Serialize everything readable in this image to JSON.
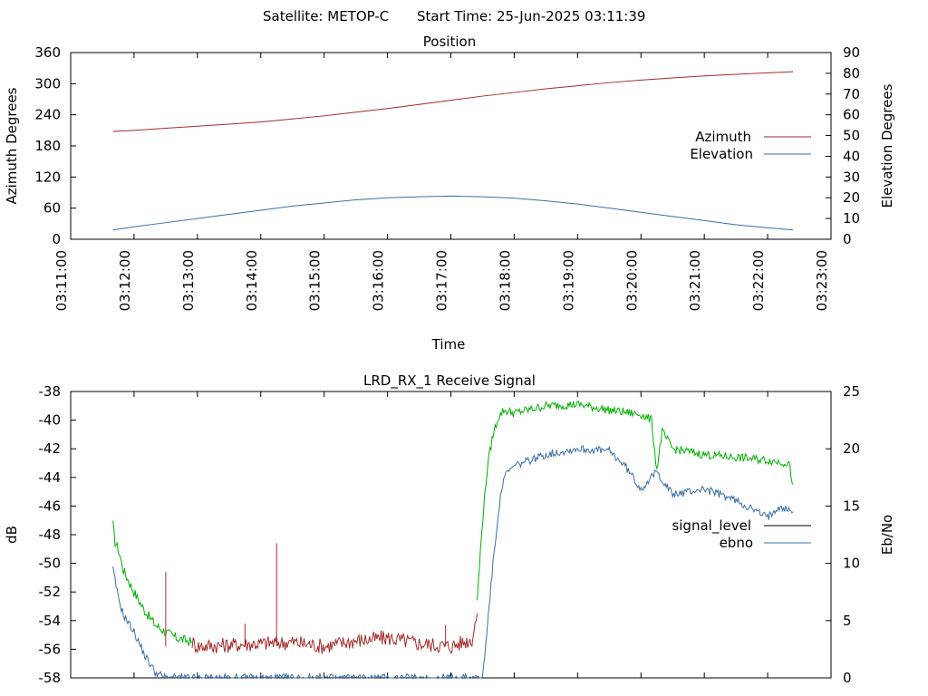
{
  "header": {
    "satellite": "Satellite: METOP-C",
    "start_time": "Start Time: 25-Jun-2025 03:11:39"
  },
  "colors": {
    "azimuth": "#a52a2a",
    "elevation": "#3a6ea5",
    "signal_green": "#00b000",
    "signal_red": "#a52a2a",
    "signal_black": "#000000",
    "ebno": "#3a6ea5"
  },
  "chart_data": [
    {
      "type": "line",
      "title": "Position",
      "xlabel": "Time",
      "ylabel": "Azimuth Degrees",
      "y2label": "Elevation Degrees",
      "xlim": [
        "03:11:00",
        "03:23:00"
      ],
      "ylim": [
        0,
        360
      ],
      "y2lim": [
        0,
        90
      ],
      "xticks": [
        "03:11:00",
        "03:12:00",
        "03:13:00",
        "03:14:00",
        "03:15:00",
        "03:16:00",
        "03:17:00",
        "03:18:00",
        "03:19:00",
        "03:20:00",
        "03:21:00",
        "03:22:00",
        "03:23:00"
      ],
      "yticks": [
        "0",
        "60",
        "120",
        "180",
        "240",
        "300",
        "360"
      ],
      "y2ticks": [
        "0",
        "10",
        "20",
        "30",
        "40",
        "50",
        "60",
        "70",
        "80",
        "90"
      ],
      "legend": "right",
      "grid": false,
      "series": [
        {
          "name": "Azimuth",
          "axis": "y",
          "x": [
            "03:11:40",
            "03:12:00",
            "03:12:30",
            "03:13:00",
            "03:13:30",
            "03:14:00",
            "03:14:30",
            "03:15:00",
            "03:15:30",
            "03:16:00",
            "03:16:30",
            "03:17:00",
            "03:17:30",
            "03:18:00",
            "03:18:30",
            "03:19:00",
            "03:19:30",
            "03:20:00",
            "03:20:30",
            "03:21:00",
            "03:21:30",
            "03:22:00",
            "03:22:24"
          ],
          "values": [
            208,
            210,
            214,
            218,
            222,
            226,
            232,
            238,
            245,
            252,
            260,
            268,
            276,
            283,
            290,
            296,
            302,
            307,
            311,
            315,
            318,
            321,
            323
          ]
        },
        {
          "name": "Elevation",
          "axis": "y2",
          "x": [
            "03:11:40",
            "03:12:00",
            "03:12:30",
            "03:13:00",
            "03:13:30",
            "03:14:00",
            "03:14:30",
            "03:15:00",
            "03:15:30",
            "03:16:00",
            "03:16:30",
            "03:17:00",
            "03:17:30",
            "03:18:00",
            "03:18:30",
            "03:19:00",
            "03:19:30",
            "03:20:00",
            "03:20:30",
            "03:21:00",
            "03:21:30",
            "03:22:00",
            "03:22:24"
          ],
          "values": [
            4.5,
            6,
            8,
            10,
            12,
            14,
            16,
            17.5,
            19,
            20,
            20.5,
            20.8,
            20.5,
            19.8,
            18.5,
            17,
            15,
            13,
            11,
            9,
            7,
            5.5,
            4.5
          ]
        }
      ]
    },
    {
      "type": "line",
      "title": "LRD_RX_1 Receive Signal",
      "ylabel": "dB",
      "y2label": "Eb/No",
      "xlim": [
        "03:11:00",
        "03:23:00"
      ],
      "ylim": [
        -58,
        -38
      ],
      "y2lim": [
        0,
        25
      ],
      "yticks": [
        "-58",
        "-56",
        "-54",
        "-52",
        "-50",
        "-48",
        "-46",
        "-44",
        "-42",
        "-40",
        "-38"
      ],
      "y2ticks": [
        "0",
        "5",
        "10",
        "15",
        "20",
        "25"
      ],
      "legend": "right",
      "grid": false,
      "series": [
        {
          "name": "signal_level",
          "axis": "y",
          "segments": [
            {
              "color_key": "signal_green",
              "x": [
                "03:11:40",
                "03:11:42",
                "03:11:45",
                "03:11:50",
                "03:12:00",
                "03:12:10",
                "03:12:20",
                "03:12:30",
                "03:12:40",
                "03:12:50",
                "03:12:55"
              ],
              "values": [
                -47.3,
                -48.5,
                -49.0,
                -50.5,
                -52.0,
                -53.3,
                -54.3,
                -54.8,
                -55.2,
                -55.4,
                -55.5
              ]
            },
            {
              "color_key": "signal_red",
              "x": [
                "03:12:55",
                "03:13:00",
                "03:13:30",
                "03:14:00",
                "03:14:30",
                "03:15:00",
                "03:15:30",
                "03:16:00",
                "03:16:30",
                "03:17:00",
                "03:17:20",
                "03:17:25"
              ],
              "values": [
                -55.5,
                -55.8,
                -55.7,
                -55.6,
                -55.5,
                -55.8,
                -55.4,
                -55.2,
                -55.6,
                -55.8,
                -55.3,
                -53.5
              ]
            },
            {
              "color_key": "signal_green",
              "x": [
                "03:17:25",
                "03:17:30",
                "03:17:35",
                "03:17:40",
                "03:17:45",
                "03:17:50",
                "03:18:00",
                "03:18:30",
                "03:19:00",
                "03:19:30",
                "03:20:00",
                "03:20:10",
                "03:20:15",
                "03:20:20",
                "03:20:30",
                "03:21:00",
                "03:21:30",
                "03:22:00",
                "03:22:20",
                "03:22:24"
              ],
              "values": [
                -52.5,
                -47.0,
                -43.0,
                -41.0,
                -39.8,
                -39.3,
                -39.5,
                -39.0,
                -38.9,
                -39.3,
                -39.6,
                -40.0,
                -43.5,
                -40.8,
                -42.0,
                -42.4,
                -42.6,
                -42.8,
                -43.0,
                -44.5
              ]
            }
          ]
        },
        {
          "name": "ebno",
          "axis": "y2",
          "x": [
            "03:11:40",
            "03:11:45",
            "03:11:50",
            "03:12:00",
            "03:12:10",
            "03:12:20",
            "03:12:30",
            "03:17:30",
            "03:17:35",
            "03:17:40",
            "03:17:45",
            "03:17:50",
            "03:18:00",
            "03:18:30",
            "03:19:00",
            "03:19:30",
            "03:19:45",
            "03:20:00",
            "03:20:15",
            "03:20:30",
            "03:21:00",
            "03:21:30",
            "03:22:00",
            "03:22:10",
            "03:22:24"
          ],
          "values": [
            9.5,
            7.0,
            5.5,
            4.0,
            2.0,
            0.5,
            0,
            0,
            5.0,
            10.0,
            14.5,
            17.5,
            18.5,
            19.5,
            20.0,
            19.8,
            18.5,
            16.5,
            18.0,
            16.0,
            16.5,
            15.5,
            14.0,
            15.0,
            14.5
          ]
        }
      ],
      "annotations": [
        {
          "x": "03:12:30",
          "value": -50.6
        },
        {
          "x": "03:14:15",
          "value": -48.6
        },
        {
          "x": "03:13:45",
          "value": -54.2
        },
        {
          "x": "03:16:55",
          "value": -54.3
        }
      ]
    }
  ]
}
